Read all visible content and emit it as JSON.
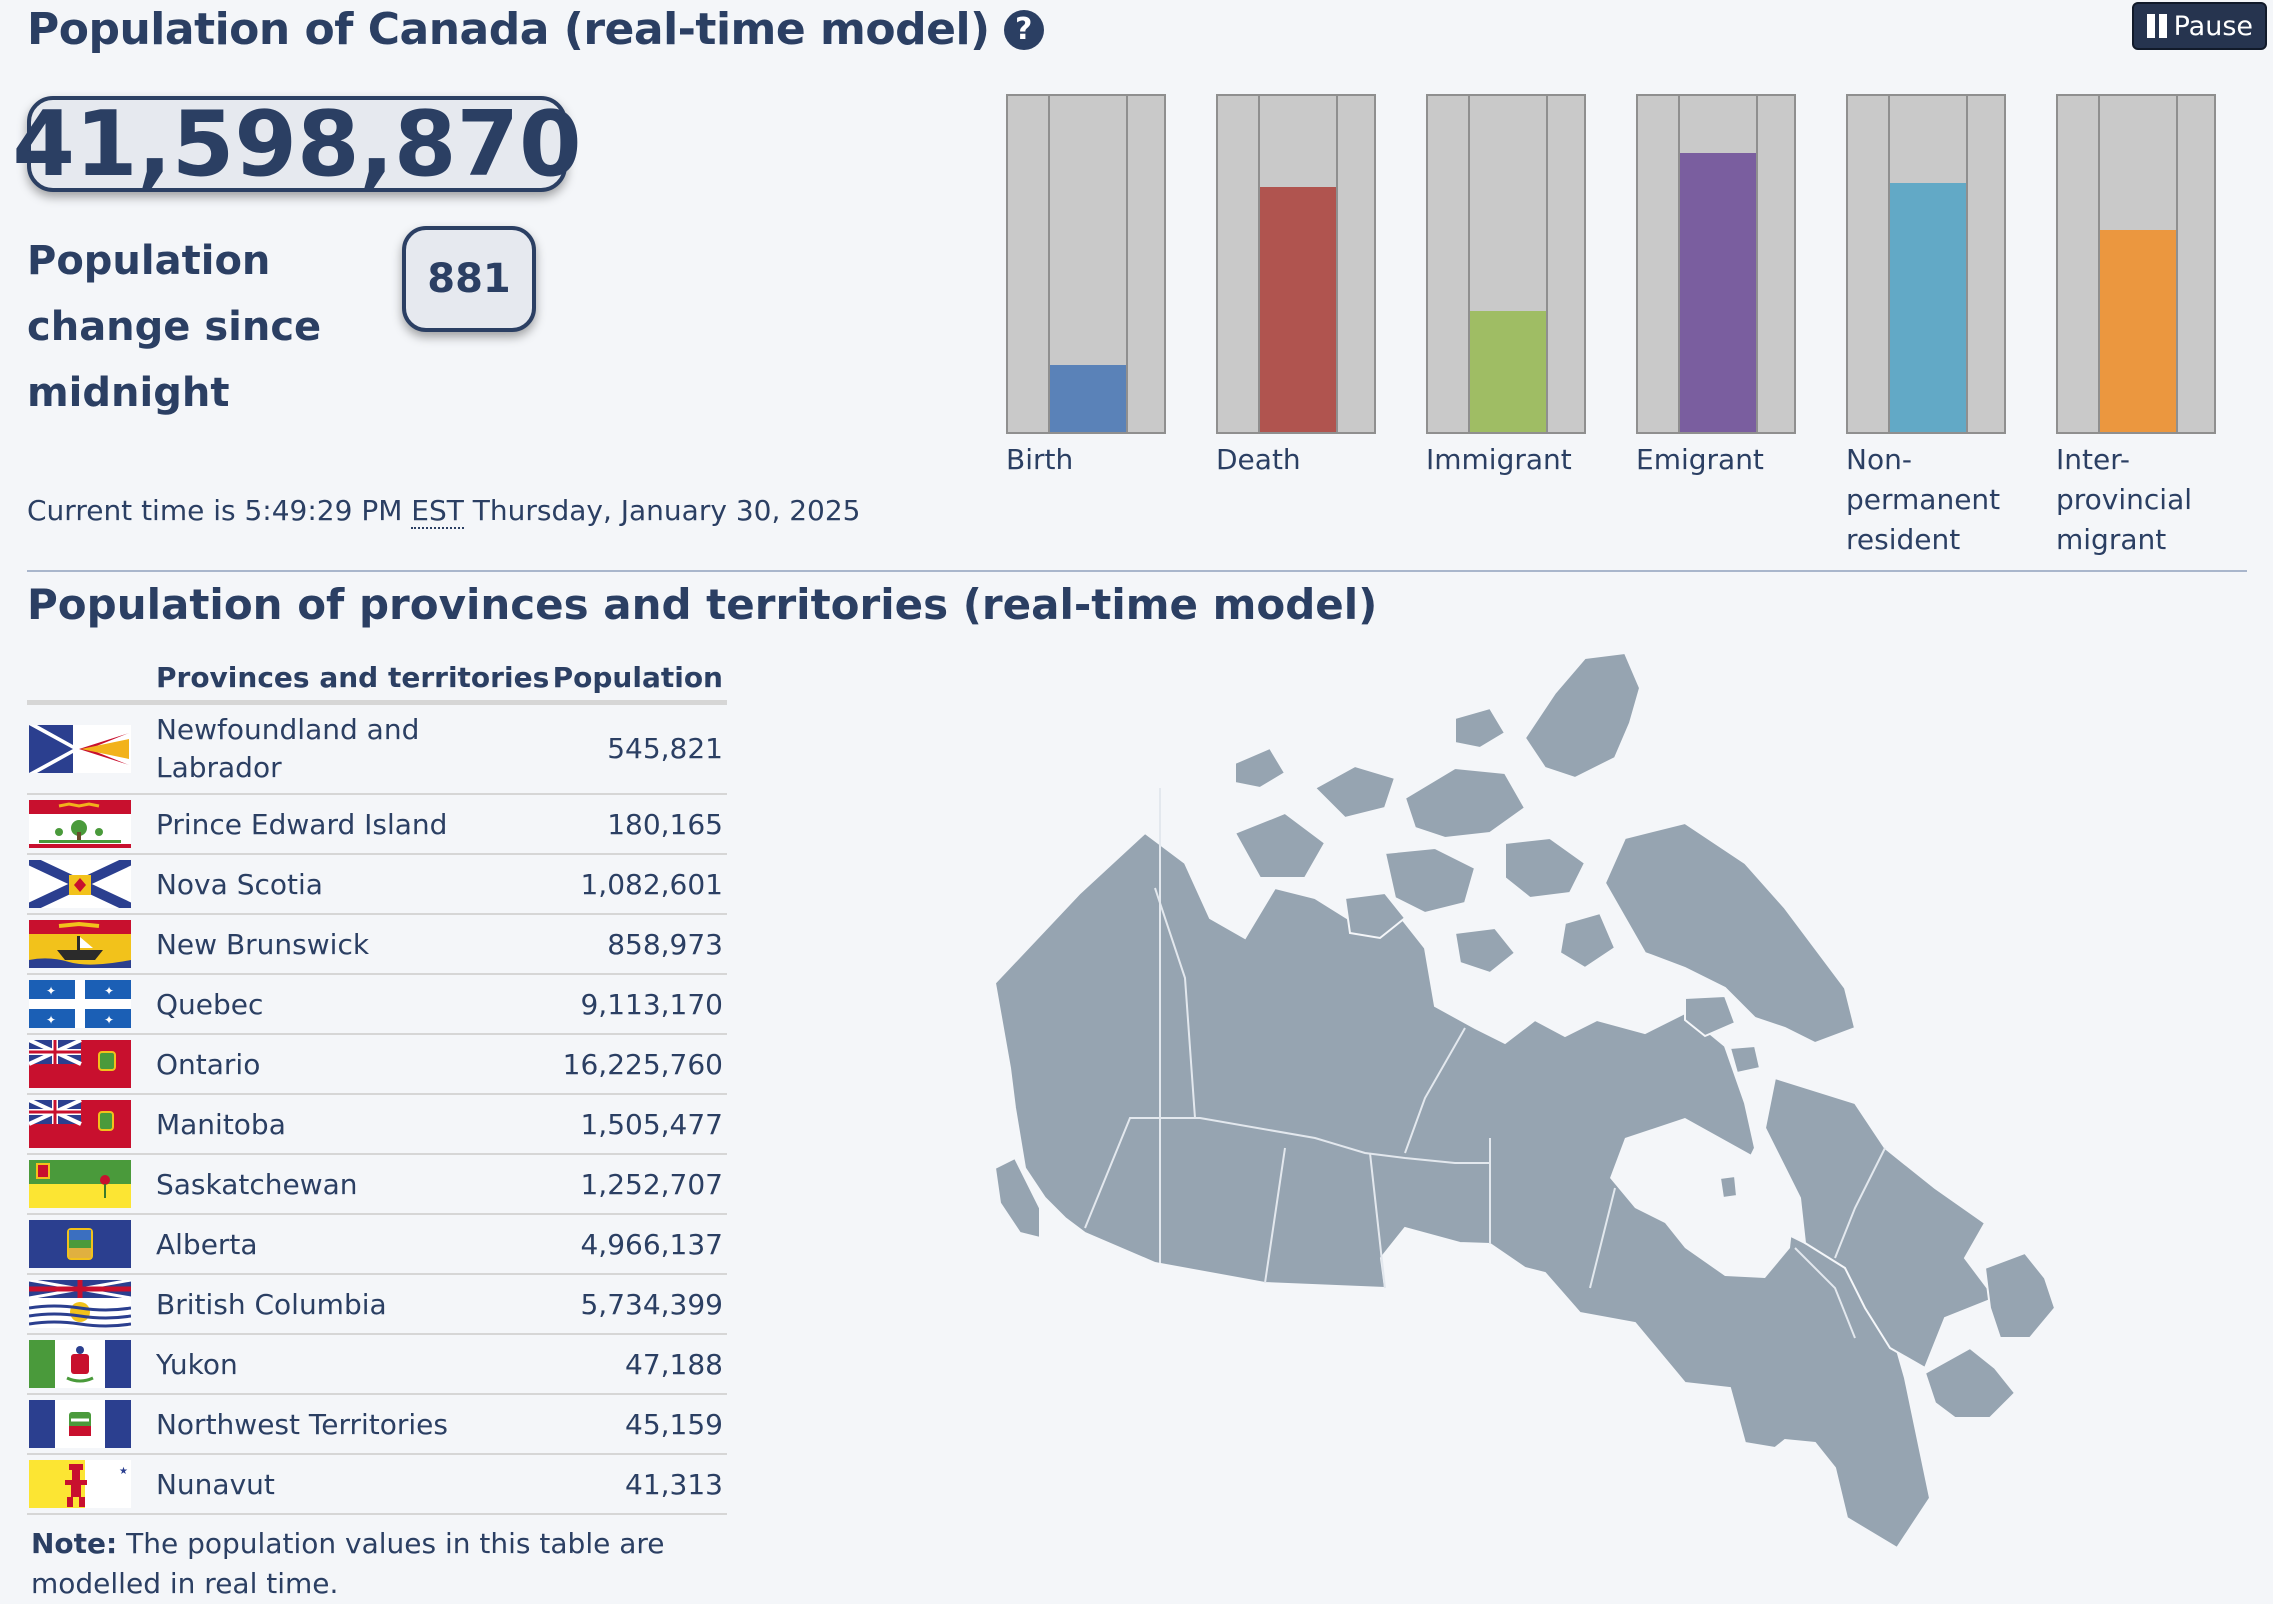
{
  "header": {
    "title": "Population of Canada (real-time model)",
    "help_icon": "question-circle-icon",
    "pause_label": "Pause",
    "pause_icon": "pause-icon"
  },
  "population": {
    "total": "41,598,870",
    "change_label": "Population change since midnight",
    "change_value": "881",
    "current_time_prefix": "Current time is 5:49:29 PM",
    "timezone": "EST",
    "current_date": "Thursday, January 30, 2025"
  },
  "gauges": [
    {
      "label": "Birth",
      "fill_fraction": 0.2,
      "color": "#5a82b8"
    },
    {
      "label": "Death",
      "fill_fraction": 0.73,
      "color": "#b0544f"
    },
    {
      "label": "Immigrant",
      "fill_fraction": 0.36,
      "color": "#9fbd64"
    },
    {
      "label": "Emigrant",
      "fill_fraction": 0.83,
      "color": "#7a5e9f"
    },
    {
      "label": "Non-permanent resident",
      "label_lines": [
        "Non-",
        "permanent",
        "resident"
      ],
      "fill_fraction": 0.74,
      "color": "#62a9c6"
    },
    {
      "label": "Inter-provincial migrant",
      "label_lines": [
        "Inter-",
        "provincial",
        "migrant"
      ],
      "fill_fraction": 0.6,
      "color": "#eb973f"
    }
  ],
  "provinces_section": {
    "title": "Population of provinces and territories (real-time model)",
    "col_name": "Provinces and territories",
    "col_population": "Population",
    "rows": [
      {
        "name": "Newfoundland and Labrador",
        "name_lines": [
          "Newfoundland and",
          "Labrador"
        ],
        "population": "545,821",
        "flag": "newfoundland-flag-icon"
      },
      {
        "name": "Prince Edward Island",
        "population": "180,165",
        "flag": "pei-flag-icon"
      },
      {
        "name": "Nova Scotia",
        "population": "1,082,601",
        "flag": "nova-scotia-flag-icon"
      },
      {
        "name": "New Brunswick",
        "population": "858,973",
        "flag": "new-brunswick-flag-icon"
      },
      {
        "name": "Quebec",
        "population": "9,113,170",
        "flag": "quebec-flag-icon"
      },
      {
        "name": "Ontario",
        "population": "16,225,760",
        "flag": "ontario-flag-icon"
      },
      {
        "name": "Manitoba",
        "population": "1,505,477",
        "flag": "manitoba-flag-icon"
      },
      {
        "name": "Saskatchewan",
        "population": "1,252,707",
        "flag": "saskatchewan-flag-icon"
      },
      {
        "name": "Alberta",
        "population": "4,966,137",
        "flag": "alberta-flag-icon"
      },
      {
        "name": "British Columbia",
        "population": "5,734,399",
        "flag": "british-columbia-flag-icon"
      },
      {
        "name": "Yukon",
        "population": "47,188",
        "flag": "yukon-flag-icon"
      },
      {
        "name": "Northwest Territories",
        "population": "45,159",
        "flag": "northwest-territories-flag-icon"
      },
      {
        "name": "Nunavut",
        "population": "41,313",
        "flag": "nunavut-flag-icon"
      }
    ],
    "note_bold": "Note:",
    "note_text": "The population values in this table are modelled in real time."
  },
  "map": {
    "icon": "canada-map-icon",
    "color": "#96a4b1"
  }
}
